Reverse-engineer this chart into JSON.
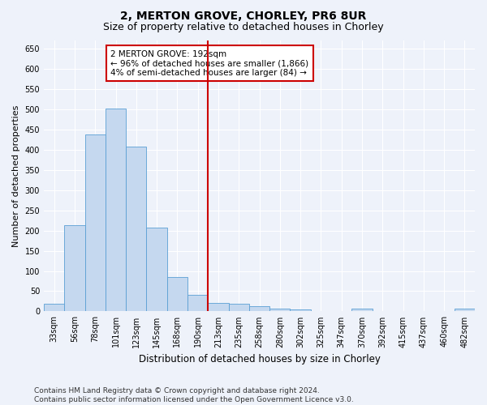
{
  "title1": "2, MERTON GROVE, CHORLEY, PR6 8UR",
  "title2": "Size of property relative to detached houses in Chorley",
  "xlabel": "Distribution of detached houses by size in Chorley",
  "ylabel": "Number of detached properties",
  "categories": [
    "33sqm",
    "56sqm",
    "78sqm",
    "101sqm",
    "123sqm",
    "145sqm",
    "168sqm",
    "190sqm",
    "213sqm",
    "235sqm",
    "258sqm",
    "280sqm",
    "302sqm",
    "325sqm",
    "347sqm",
    "370sqm",
    "392sqm",
    "415sqm",
    "437sqm",
    "460sqm",
    "482sqm"
  ],
  "values": [
    18,
    213,
    437,
    502,
    408,
    207,
    85,
    40,
    20,
    18,
    12,
    6,
    5,
    0,
    0,
    6,
    0,
    0,
    0,
    0,
    6
  ],
  "bar_color": "#c5d8ef",
  "bar_edge_color": "#5a9fd4",
  "bar_edge_width": 0.6,
  "highlight_index": 7,
  "vline_color": "#cc0000",
  "vline_linewidth": 1.5,
  "ylim": [
    0,
    670
  ],
  "yticks": [
    0,
    50,
    100,
    150,
    200,
    250,
    300,
    350,
    400,
    450,
    500,
    550,
    600,
    650
  ],
  "annotation_text": "2 MERTON GROVE: 192sqm\n← 96% of detached houses are smaller (1,866)\n4% of semi-detached houses are larger (84) →",
  "annotation_box_color": "#ffffff",
  "annotation_border_color": "#cc0000",
  "footer_text": "Contains HM Land Registry data © Crown copyright and database right 2024.\nContains public sector information licensed under the Open Government Licence v3.0.",
  "background_color": "#eef2fa",
  "grid_color": "#ffffff",
  "title1_fontsize": 10,
  "title2_fontsize": 9,
  "xlabel_fontsize": 8.5,
  "ylabel_fontsize": 8,
  "tick_fontsize": 7,
  "footer_fontsize": 6.5,
  "annotation_fontsize": 7.5
}
